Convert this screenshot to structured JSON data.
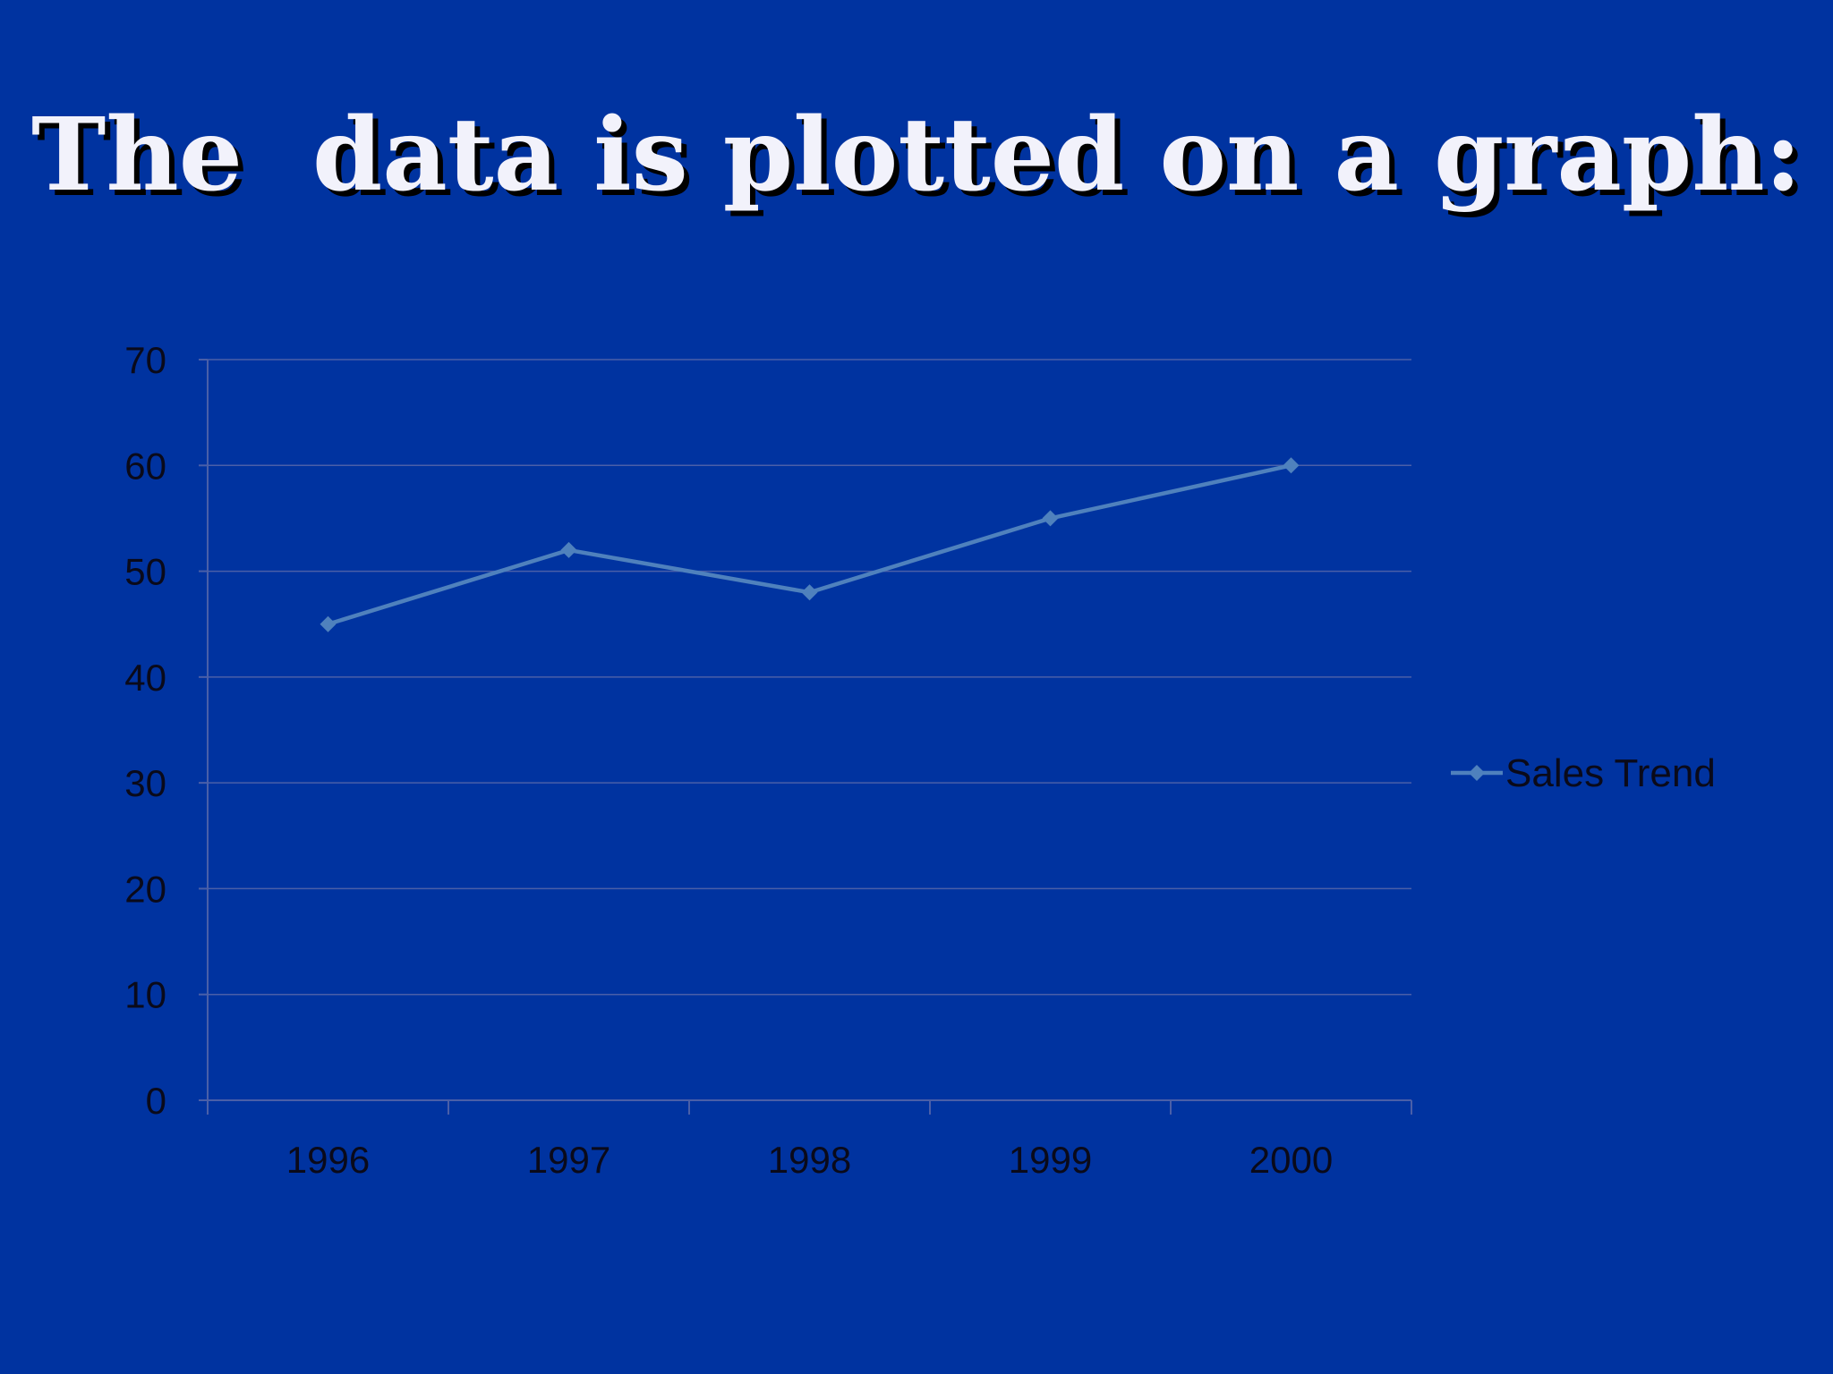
{
  "slide": {
    "title": "The  data is plotted on a graph:"
  },
  "colors": {
    "background": "#0033a0",
    "series_line": "#4f81bd",
    "gridline": "#4a5fa8",
    "title_text": "#f2f2fb"
  },
  "chart_data": {
    "type": "line",
    "categories": [
      "1996",
      "1997",
      "1998",
      "1999",
      "2000"
    ],
    "series": [
      {
        "name": "Sales Trend",
        "values": [
          45,
          52,
          48,
          55,
          60
        ],
        "marker": "diamond"
      }
    ],
    "ylim": [
      0,
      70
    ],
    "yticks": [
      0,
      10,
      20,
      30,
      40,
      50,
      60,
      70
    ],
    "grid": true,
    "legend": "right",
    "title": "",
    "xlabel": "",
    "ylabel": ""
  }
}
